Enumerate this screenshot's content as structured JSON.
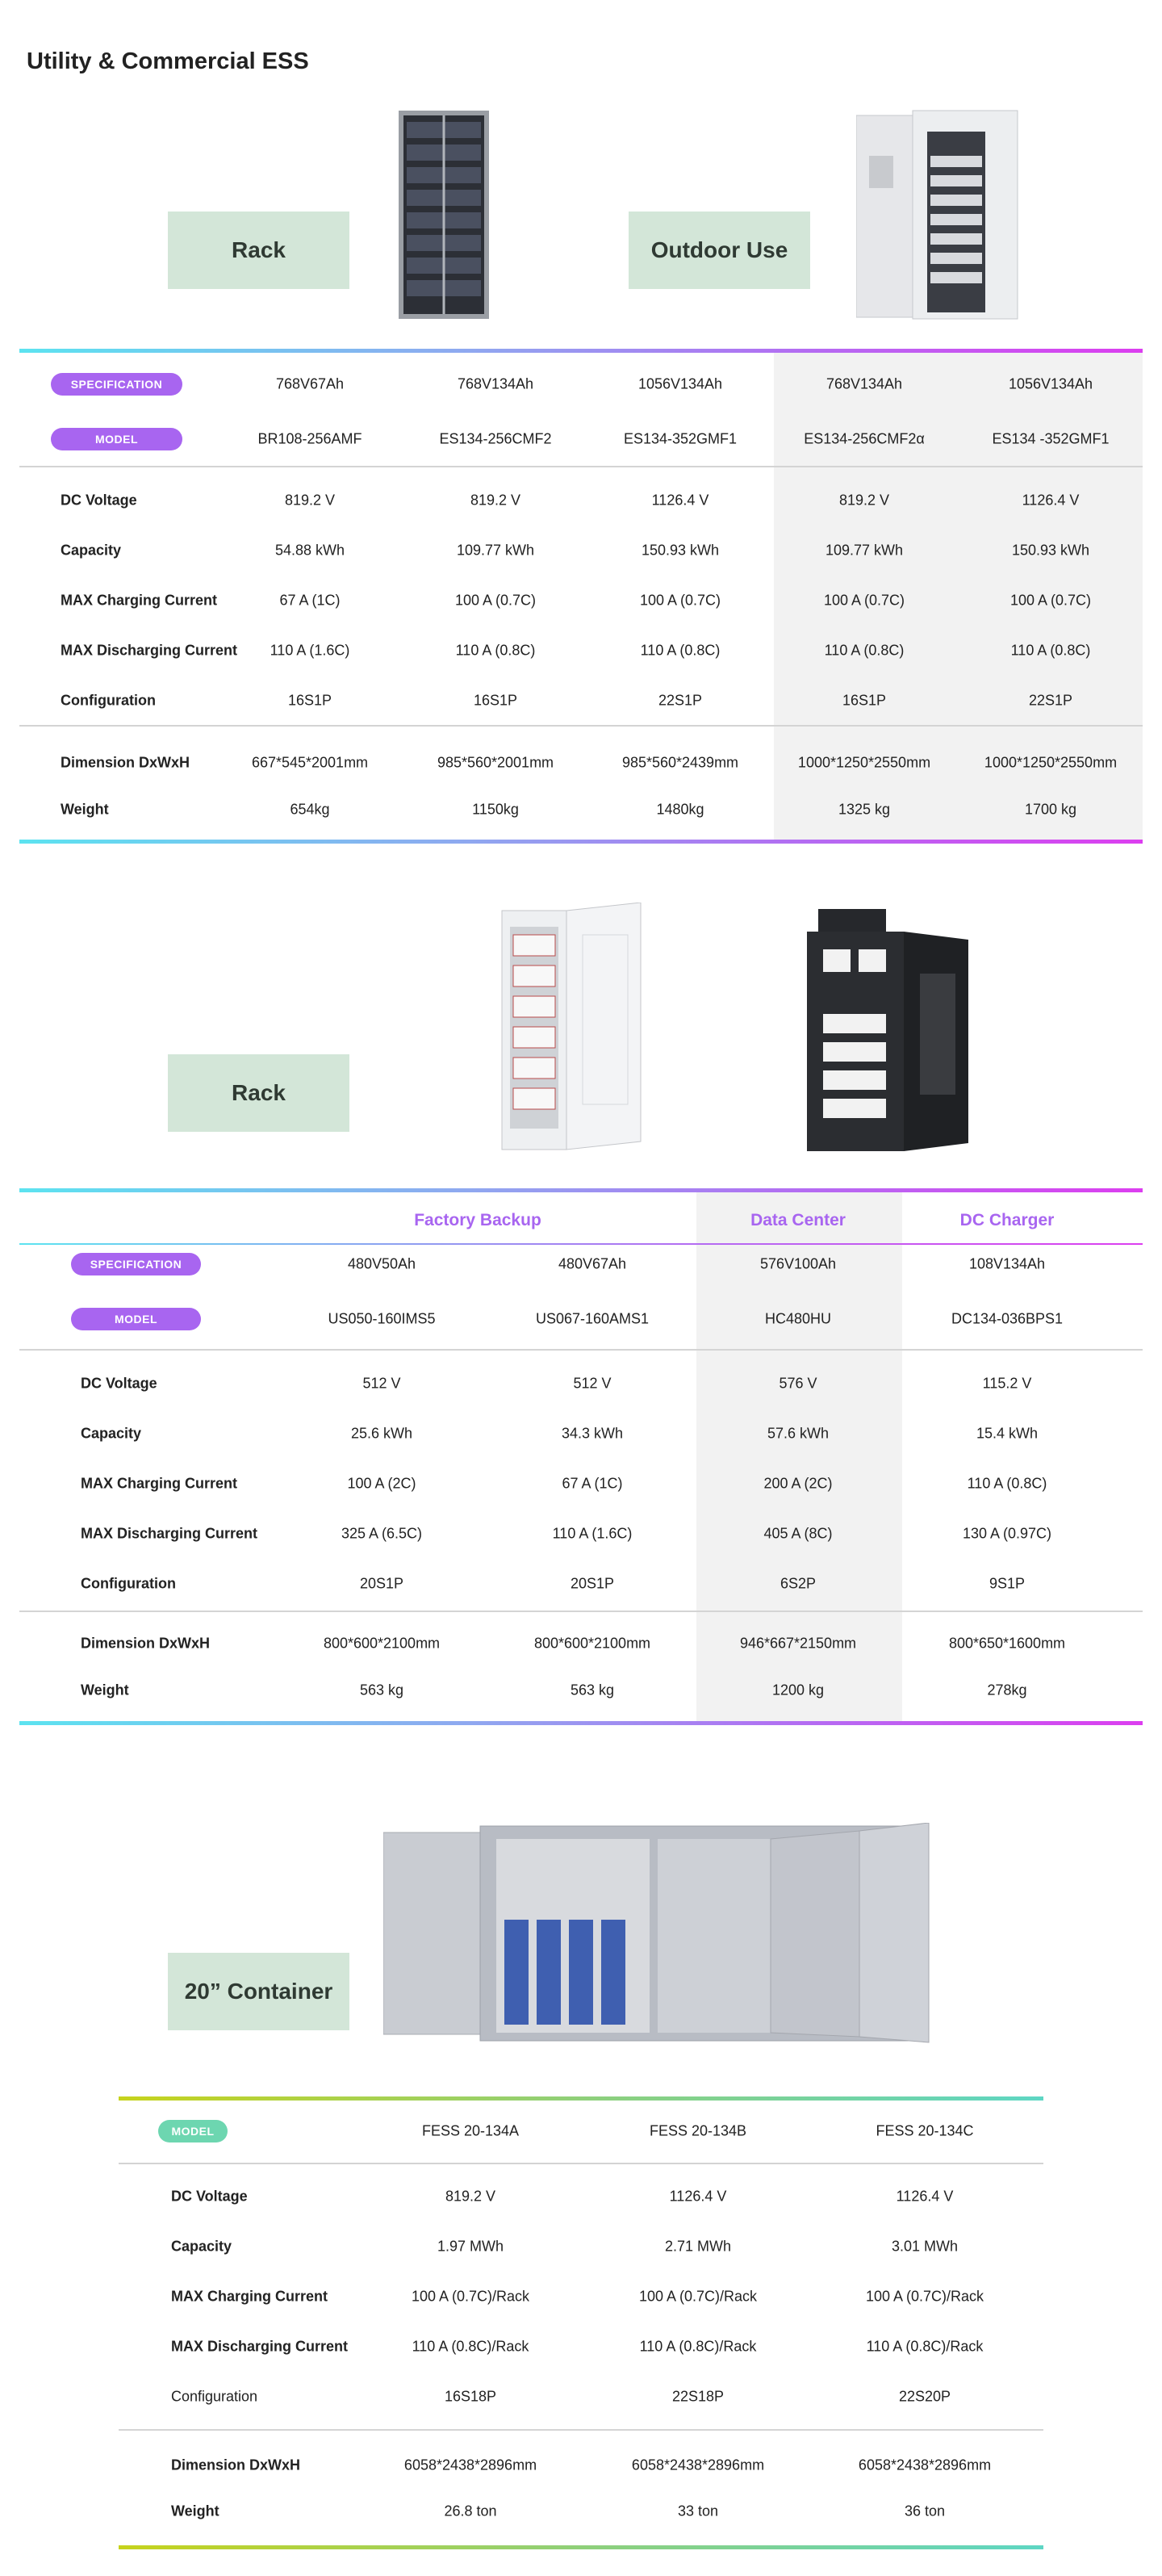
{
  "page_title": "Utility & Commercial ESS",
  "colors": {
    "accent_purple": "#a865f0",
    "accent_green": "#6dd6b0",
    "category_box": "#d3e6d8"
  },
  "section1": {
    "categories": [
      "Rack",
      "Outdoor Use"
    ],
    "spec_label": "SPECIFICATION",
    "model_label": "MODEL",
    "specs": [
      "768V67Ah",
      "768V134Ah",
      "1056V134Ah",
      "768V134Ah",
      "1056V134Ah"
    ],
    "models": [
      "BR108-256AMF",
      "ES134-256CMF2",
      "ES134-352GMF1",
      "ES134-256CMF2α",
      "ES134 -352GMF1"
    ],
    "rows": [
      {
        "label": "DC Voltage",
        "values": [
          "819.2 V",
          "819.2 V",
          "1126.4 V",
          "819.2 V",
          "1126.4 V"
        ]
      },
      {
        "label": "Capacity",
        "values": [
          "54.88 kWh",
          "109.77 kWh",
          "150.93 kWh",
          "109.77 kWh",
          "150.93 kWh"
        ]
      },
      {
        "label": "MAX Charging Current",
        "values": [
          "67 A (1C)",
          "100 A (0.7C)",
          "100 A (0.7C)",
          "100 A (0.7C)",
          "100 A (0.7C)"
        ]
      },
      {
        "label": "MAX Discharging Current",
        "values": [
          "110 A (1.6C)",
          "110 A (0.8C)",
          "110 A (0.8C)",
          "110 A (0.8C)",
          "110 A (0.8C)"
        ]
      },
      {
        "label": "Configuration",
        "values": [
          "16S1P",
          "16S1P",
          "22S1P",
          "16S1P",
          "22S1P"
        ]
      },
      {
        "label": "Dimension DxWxH",
        "values": [
          "667*545*2001mm",
          "985*560*2001mm",
          "985*560*2439mm",
          "1000*1250*2550mm",
          "1000*1250*2550mm"
        ]
      },
      {
        "label": "Weight",
        "values": [
          "654kg",
          "1150kg",
          "1480kg",
          "1325 kg",
          "1700 kg"
        ]
      }
    ]
  },
  "section2": {
    "categories": [
      "Rack"
    ],
    "groups": [
      "Factory Backup",
      "Data Center",
      "DC Charger"
    ],
    "spec_label": "SPECIFICATION",
    "model_label": "MODEL",
    "specs": [
      "480V50Ah",
      "480V67Ah",
      "576V100Ah",
      "108V134Ah"
    ],
    "models": [
      "US050-160IMS5",
      "US067-160AMS1",
      "HC480HU",
      "DC134-036BPS1"
    ],
    "rows": [
      {
        "label": "DC Voltage",
        "values": [
          "512 V",
          "512 V",
          "576 V",
          "115.2 V"
        ]
      },
      {
        "label": "Capacity",
        "values": [
          "25.6 kWh",
          "34.3 kWh",
          "57.6 kWh",
          "15.4 kWh"
        ]
      },
      {
        "label": "MAX Charging Current",
        "values": [
          "100 A (2C)",
          "67 A (1C)",
          "200 A (2C)",
          "110 A (0.8C)"
        ]
      },
      {
        "label": "MAX Discharging Current",
        "values": [
          "325 A (6.5C)",
          "110 A (1.6C)",
          "405 A (8C)",
          "130 A (0.97C)"
        ]
      },
      {
        "label": "Configuration",
        "values": [
          "20S1P",
          "20S1P",
          "6S2P",
          "9S1P"
        ]
      },
      {
        "label": "Dimension DxWxH",
        "values": [
          "800*600*2100mm",
          "800*600*2100mm",
          "946*667*2150mm",
          "800*650*1600mm"
        ]
      },
      {
        "label": "Weight",
        "values": [
          "563 kg",
          "563 kg",
          "1200 kg",
          "278kg"
        ]
      }
    ]
  },
  "section3": {
    "categories": [
      "20” Container"
    ],
    "model_label": "MODEL",
    "models": [
      "FESS 20-134A",
      "FESS 20-134B",
      "FESS 20-134C"
    ],
    "rows": [
      {
        "label": "DC Voltage",
        "values": [
          "819.2 V",
          "1126.4 V",
          "1126.4 V"
        ]
      },
      {
        "label": "Capacity",
        "values": [
          "1.97 MWh",
          "2.71 MWh",
          "3.01 MWh"
        ]
      },
      {
        "label": "MAX Charging Current",
        "values": [
          "100 A (0.7C)/Rack",
          "100 A (0.7C)/Rack",
          "100 A (0.7C)/Rack"
        ]
      },
      {
        "label": "MAX Discharging Current",
        "values": [
          "110 A (0.8C)/Rack",
          "110 A (0.8C)/Rack",
          "110 A (0.8C)/Rack"
        ]
      },
      {
        "label": "Configuration",
        "values": [
          "16S18P",
          "22S18P",
          "22S20P"
        ]
      },
      {
        "label": "Dimension DxWxH",
        "values": [
          "6058*2438*2896mm",
          "6058*2438*2896mm",
          "6058*2438*2896mm"
        ]
      },
      {
        "label": "Weight",
        "values": [
          "26.8 ton",
          "33 ton",
          "36 ton"
        ]
      }
    ]
  }
}
